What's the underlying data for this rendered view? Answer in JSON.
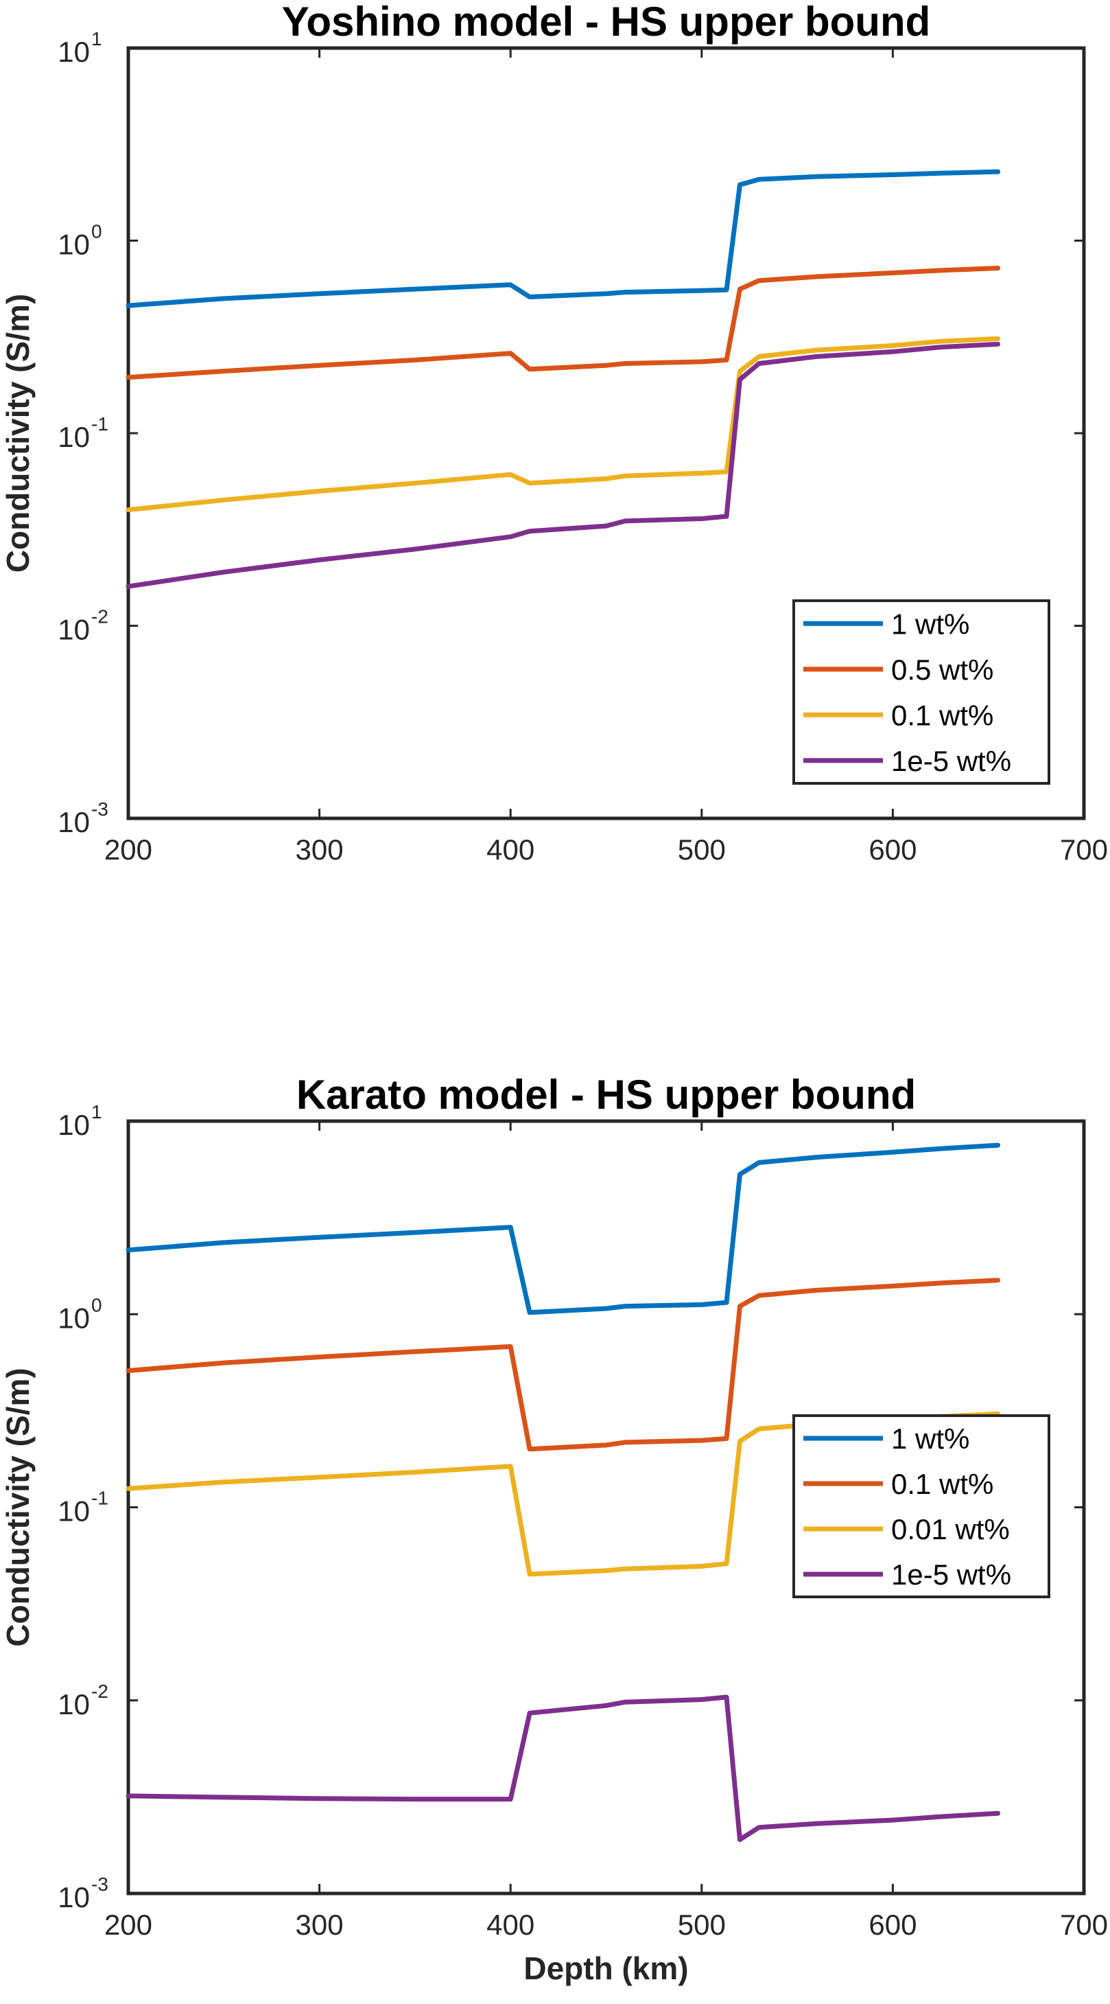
{
  "chart_data": [
    {
      "type": "line",
      "title": "Yoshino model - HS upper bound",
      "xlabel": "",
      "ylabel": "Conductivity (S/m)",
      "xlim": [
        200,
        700
      ],
      "ylim": [
        0.001,
        10
      ],
      "yscale": "log",
      "xticks": [
        "200",
        "300",
        "400",
        "500",
        "600",
        "700"
      ],
      "yticks": [
        {
          "base": "10",
          "exp": "-3"
        },
        {
          "base": "10",
          "exp": "-2"
        },
        {
          "base": "10",
          "exp": "-1"
        },
        {
          "base": "10",
          "exp": "0"
        },
        {
          "base": "10",
          "exp": "1"
        }
      ],
      "grid": false,
      "legend_position": "bottom-right",
      "series": [
        {
          "name": "1 wt%",
          "color": "#0072BD",
          "x": [
            200,
            250,
            300,
            350,
            400,
            410,
            450,
            460,
            500,
            513,
            520,
            530,
            560,
            600,
            625,
            655
          ],
          "y": [
            0.46,
            0.5,
            0.53,
            0.56,
            0.59,
            0.51,
            0.53,
            0.54,
            0.55,
            0.555,
            1.95,
            2.08,
            2.15,
            2.2,
            2.24,
            2.28
          ]
        },
        {
          "name": "0.5 wt%",
          "color": "#D95319",
          "x": [
            200,
            250,
            300,
            350,
            400,
            410,
            450,
            460,
            500,
            513,
            520,
            530,
            560,
            600,
            625,
            655
          ],
          "y": [
            0.195,
            0.21,
            0.225,
            0.24,
            0.26,
            0.215,
            0.225,
            0.23,
            0.235,
            0.24,
            0.56,
            0.62,
            0.65,
            0.68,
            0.7,
            0.72
          ]
        },
        {
          "name": "0.1 wt%",
          "color": "#EDB120",
          "x": [
            200,
            250,
            300,
            350,
            400,
            410,
            450,
            460,
            500,
            513,
            520,
            530,
            560,
            600,
            625,
            655
          ],
          "y": [
            0.04,
            0.045,
            0.05,
            0.055,
            0.061,
            0.055,
            0.058,
            0.06,
            0.062,
            0.063,
            0.21,
            0.25,
            0.27,
            0.285,
            0.3,
            0.31
          ]
        },
        {
          "name": "1e-5 wt%",
          "color": "#7E2F8E",
          "x": [
            200,
            250,
            300,
            350,
            400,
            410,
            450,
            460,
            500,
            513,
            520,
            530,
            560,
            600,
            625,
            655
          ],
          "y": [
            0.016,
            0.019,
            0.022,
            0.025,
            0.029,
            0.031,
            0.033,
            0.035,
            0.036,
            0.037,
            0.19,
            0.23,
            0.25,
            0.265,
            0.28,
            0.29
          ]
        }
      ]
    },
    {
      "type": "line",
      "title": "Karato model - HS upper bound",
      "xlabel": "Depth (km)",
      "ylabel": "Conductivity (S/m)",
      "xlim": [
        200,
        700
      ],
      "ylim": [
        0.001,
        10
      ],
      "yscale": "log",
      "xticks": [
        "200",
        "300",
        "400",
        "500",
        "600",
        "700"
      ],
      "yticks": [
        {
          "base": "10",
          "exp": "-3"
        },
        {
          "base": "10",
          "exp": "-2"
        },
        {
          "base": "10",
          "exp": "-1"
        },
        {
          "base": "10",
          "exp": "0"
        },
        {
          "base": "10",
          "exp": "1"
        }
      ],
      "grid": false,
      "legend_position": "center-right",
      "series": [
        {
          "name": "1 wt%",
          "color": "#0072BD",
          "x": [
            200,
            250,
            300,
            350,
            400,
            410,
            450,
            460,
            500,
            513,
            520,
            530,
            560,
            600,
            625,
            655
          ],
          "y": [
            2.15,
            2.35,
            2.5,
            2.65,
            2.82,
            1.02,
            1.07,
            1.1,
            1.12,
            1.15,
            5.3,
            6.1,
            6.5,
            6.9,
            7.2,
            7.5
          ]
        },
        {
          "name": "0.1 wt%",
          "color": "#D95319",
          "x": [
            200,
            250,
            300,
            350,
            400,
            410,
            450,
            460,
            500,
            513,
            520,
            530,
            560,
            600,
            625,
            655
          ],
          "y": [
            0.51,
            0.56,
            0.6,
            0.64,
            0.68,
            0.2,
            0.21,
            0.217,
            0.222,
            0.227,
            1.1,
            1.25,
            1.33,
            1.4,
            1.45,
            1.5
          ]
        },
        {
          "name": "0.01 wt%",
          "color": "#EDB120",
          "x": [
            200,
            250,
            300,
            350,
            400,
            410,
            450,
            460,
            500,
            513,
            520,
            530,
            560,
            600,
            625,
            655
          ],
          "y": [
            0.125,
            0.135,
            0.143,
            0.152,
            0.163,
            0.045,
            0.047,
            0.048,
            0.0495,
            0.051,
            0.22,
            0.255,
            0.27,
            0.285,
            0.295,
            0.305
          ]
        },
        {
          "name": "1e-5 wt%",
          "color": "#7E2F8E",
          "x": [
            200,
            250,
            300,
            350,
            400,
            410,
            450,
            460,
            500,
            513,
            520,
            530,
            560,
            600,
            625,
            655
          ],
          "y": [
            0.0032,
            0.00315,
            0.0031,
            0.00308,
            0.00308,
            0.0086,
            0.0094,
            0.0098,
            0.0101,
            0.0104,
            0.0019,
            0.0022,
            0.0023,
            0.0024,
            0.0025,
            0.0026
          ]
        }
      ]
    }
  ]
}
